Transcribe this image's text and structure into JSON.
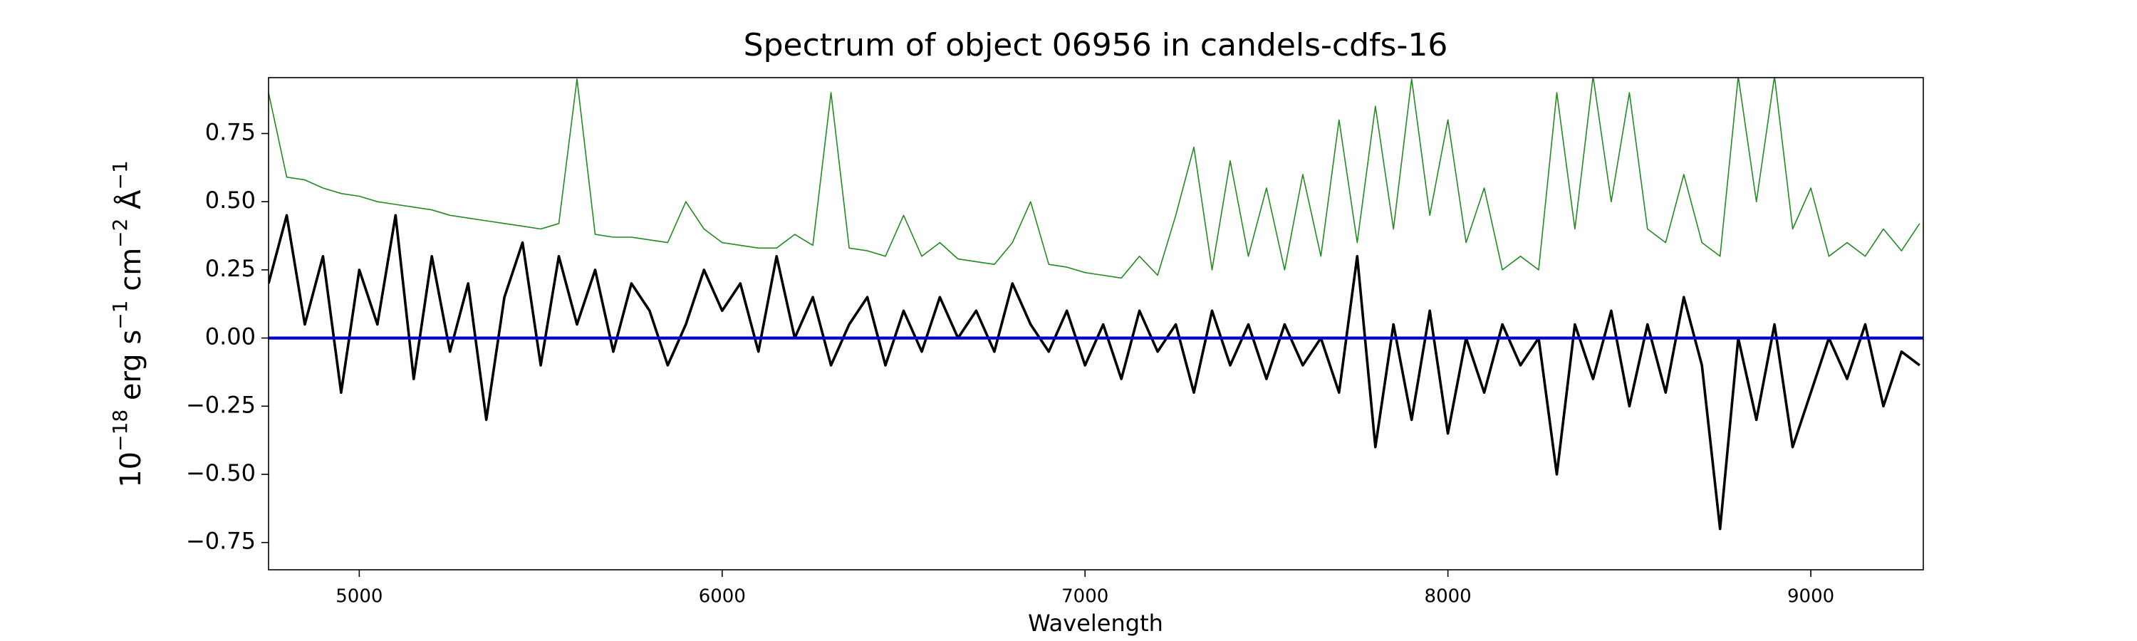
{
  "chart_data": {
    "type": "line",
    "title": "Spectrum of object 06956 in candels-cdfs-16",
    "xlabel": "Wavelength",
    "ylabel": [
      {
        "text": "10",
        "sup": "−18"
      },
      {
        "text": " erg s",
        "sup": "−1"
      },
      {
        "text": " cm",
        "sup": "−2"
      },
      {
        "text": " Å",
        "sup": "−1"
      }
    ],
    "xlim": [
      4750,
      9310
    ],
    "ylim": [
      -0.85,
      0.955
    ],
    "xticks": [
      5000,
      6000,
      7000,
      8000,
      9000
    ],
    "yticks": [
      {
        "value": -0.75,
        "label": "−0.75"
      },
      {
        "value": -0.5,
        "label": "−0.50"
      },
      {
        "value": -0.25,
        "label": "−0.25"
      },
      {
        "value": 0,
        "label": "0.00"
      },
      {
        "value": 0.25,
        "label": "0.25"
      },
      {
        "value": 0.5,
        "label": "0.50"
      },
      {
        "value": 0.75,
        "label": "0.75"
      }
    ],
    "grid": false,
    "x": [
      4750,
      4800,
      4850,
      4900,
      4950,
      5000,
      5050,
      5100,
      5150,
      5200,
      5250,
      5300,
      5350,
      5400,
      5450,
      5500,
      5550,
      5600,
      5650,
      5700,
      5750,
      5800,
      5850,
      5900,
      5950,
      6000,
      6050,
      6100,
      6150,
      6200,
      6250,
      6300,
      6350,
      6400,
      6450,
      6500,
      6550,
      6600,
      6650,
      6700,
      6750,
      6800,
      6850,
      6900,
      6950,
      7000,
      7050,
      7100,
      7150,
      7200,
      7250,
      7300,
      7350,
      7400,
      7450,
      7500,
      7550,
      7600,
      7650,
      7700,
      7750,
      7800,
      7850,
      7900,
      7950,
      8000,
      8050,
      8100,
      8150,
      8200,
      8250,
      8300,
      8350,
      8400,
      8450,
      8500,
      8550,
      8600,
      8650,
      8700,
      8750,
      8800,
      8850,
      8900,
      8950,
      9000,
      9050,
      9100,
      9150,
      9200,
      9250,
      9300
    ],
    "series": [
      {
        "color": "#228b22",
        "width": 1.6,
        "values": [
          0.9,
          0.59,
          0.58,
          0.55,
          0.53,
          0.52,
          0.5,
          0.49,
          0.48,
          0.47,
          0.45,
          0.44,
          0.43,
          0.42,
          0.41,
          0.4,
          0.42,
          0.95,
          0.38,
          0.37,
          0.37,
          0.36,
          0.35,
          0.5,
          0.4,
          0.35,
          0.34,
          0.33,
          0.33,
          0.38,
          0.34,
          0.9,
          0.33,
          0.32,
          0.3,
          0.45,
          0.3,
          0.35,
          0.29,
          0.28,
          0.27,
          0.35,
          0.5,
          0.27,
          0.26,
          0.24,
          0.23,
          0.22,
          0.3,
          0.23,
          0.45,
          0.7,
          0.25,
          0.65,
          0.3,
          0.55,
          0.25,
          0.6,
          0.3,
          0.8,
          0.35,
          0.85,
          0.4,
          0.95,
          0.45,
          0.8,
          0.35,
          0.55,
          0.25,
          0.3,
          0.25,
          0.9,
          0.4,
          0.96,
          0.5,
          0.9,
          0.4,
          0.35,
          0.6,
          0.35,
          0.3,
          0.96,
          0.5,
          0.96,
          0.4,
          0.55,
          0.3,
          0.35,
          0.3,
          0.4,
          0.32,
          0.42
        ]
      },
      {
        "color": "#000000",
        "width": 3.6,
        "values": [
          0.2,
          0.45,
          0.05,
          0.3,
          -0.2,
          0.25,
          0.05,
          0.45,
          -0.15,
          0.3,
          -0.05,
          0.2,
          -0.3,
          0.15,
          0.35,
          -0.1,
          0.3,
          0.05,
          0.25,
          -0.05,
          0.2,
          0.1,
          -0.1,
          0.05,
          0.25,
          0.1,
          0.2,
          -0.05,
          0.3,
          0.0,
          0.15,
          -0.1,
          0.05,
          0.15,
          -0.1,
          0.1,
          -0.05,
          0.15,
          0.0,
          0.1,
          -0.05,
          0.2,
          0.05,
          -0.05,
          0.1,
          -0.1,
          0.05,
          -0.15,
          0.1,
          -0.05,
          0.05,
          -0.2,
          0.1,
          -0.1,
          0.05,
          -0.15,
          0.05,
          -0.1,
          0.0,
          -0.2,
          0.3,
          -0.4,
          0.05,
          -0.3,
          0.1,
          -0.35,
          0.0,
          -0.2,
          0.05,
          -0.1,
          0.0,
          -0.5,
          0.05,
          -0.15,
          0.1,
          -0.25,
          0.05,
          -0.2,
          0.15,
          -0.1,
          -0.7,
          0.0,
          -0.3,
          0.05,
          -0.4,
          -0.2,
          0.0,
          -0.15,
          0.05,
          -0.25,
          -0.05,
          -0.1
        ]
      },
      {
        "color": "#0000cc",
        "width": 4.2,
        "x": [
          4750,
          9310
        ],
        "values": [
          0,
          0
        ]
      }
    ]
  }
}
